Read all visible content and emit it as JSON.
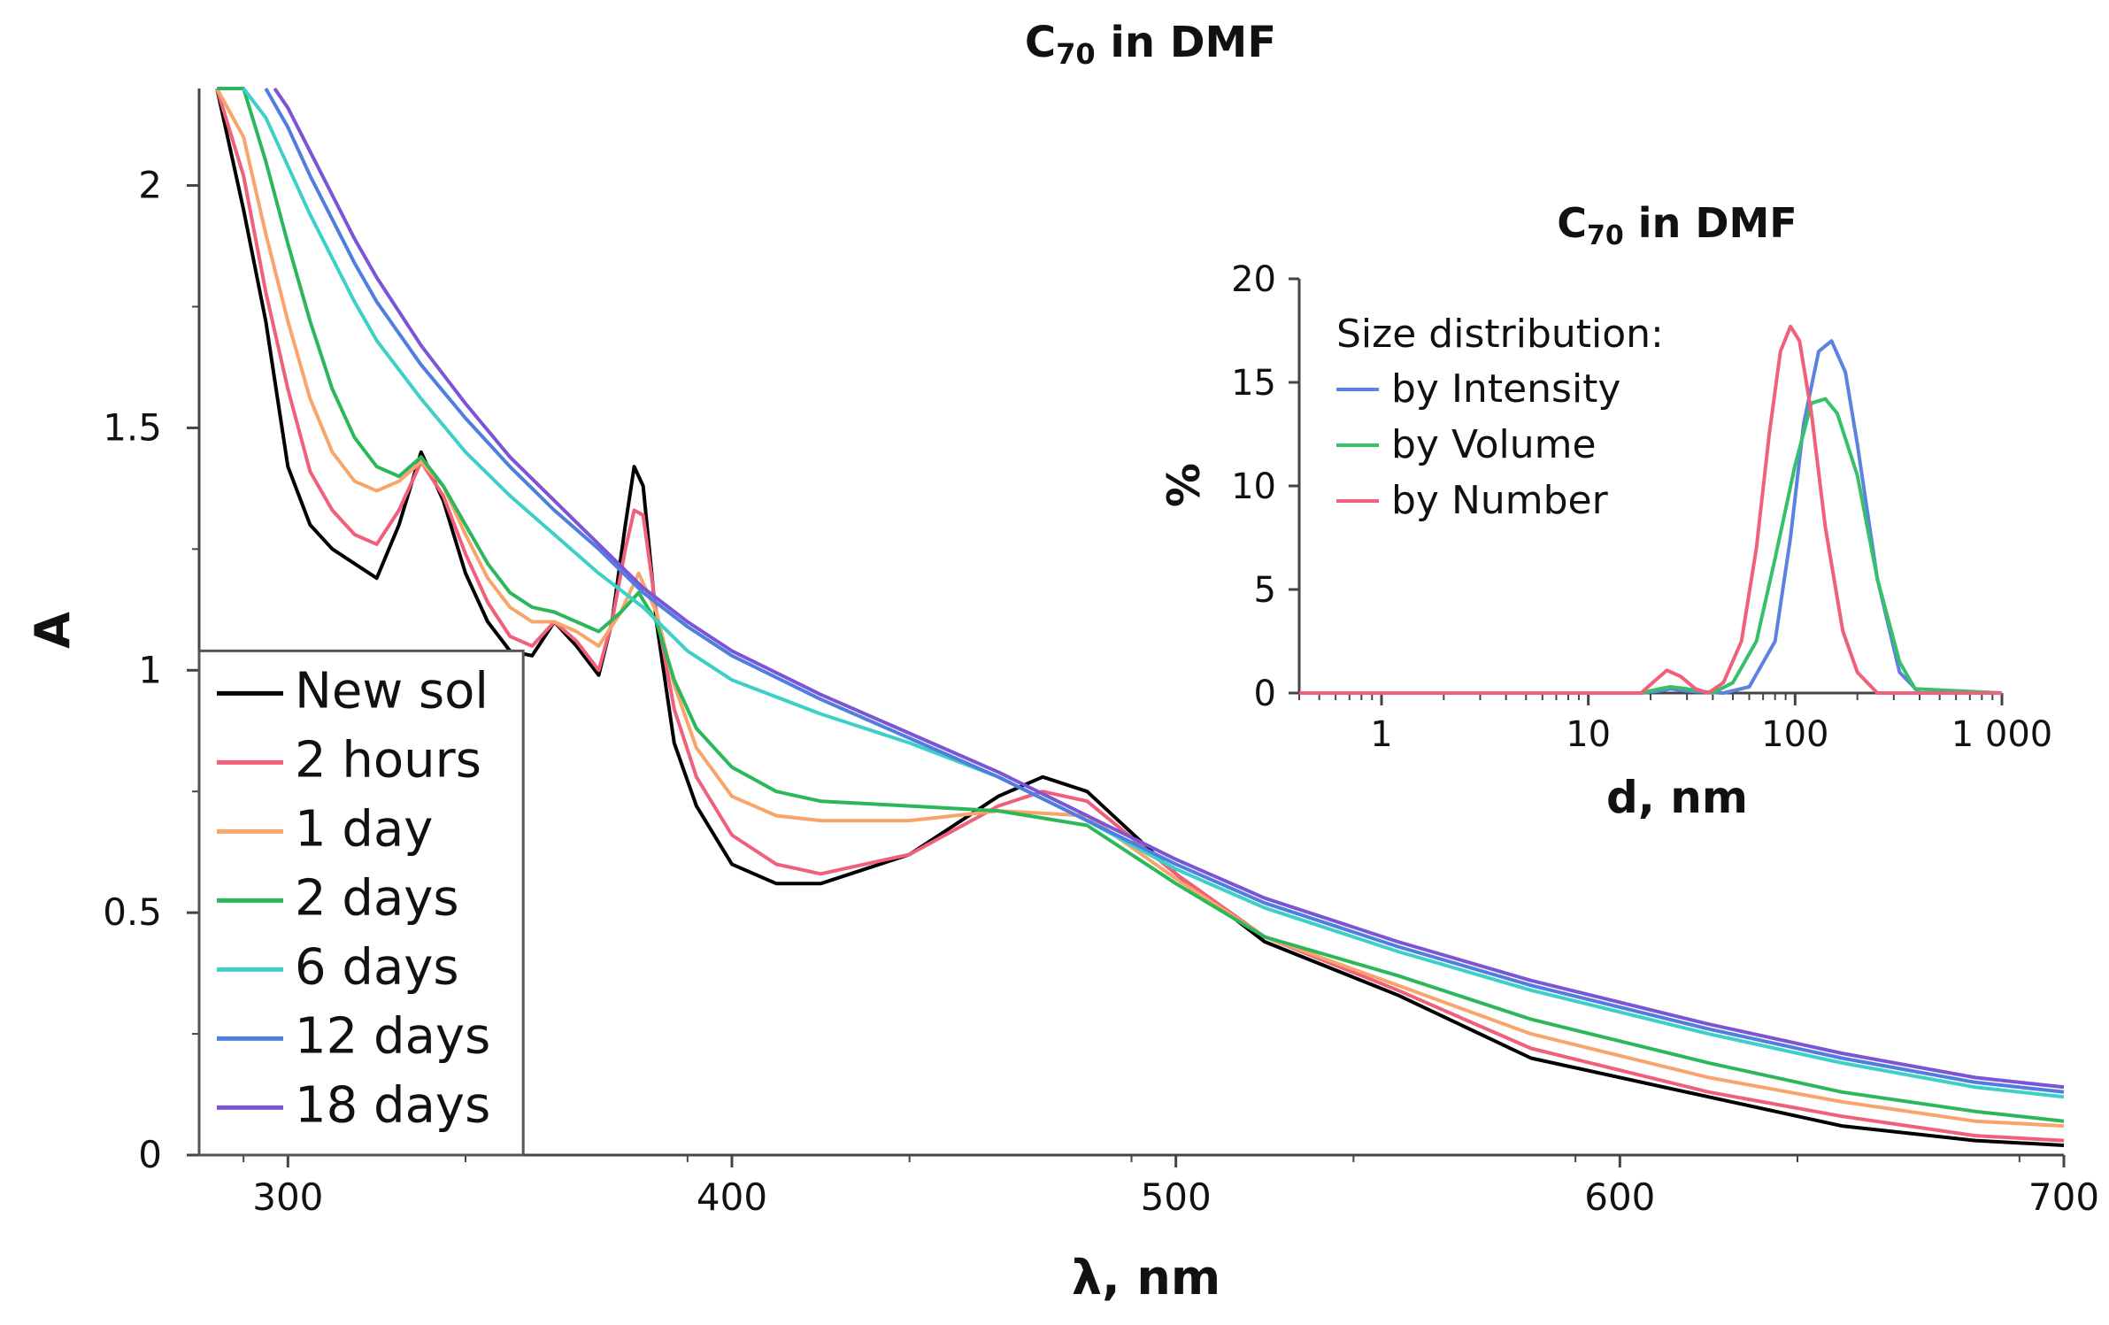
{
  "chart_data": [
    {
      "type": "line",
      "title": "C70 in DMF",
      "title_base": "C",
      "title_sub": "70",
      "title_rest": " in DMF",
      "xlabel": "λ, nm",
      "ylabel": "A",
      "xlim": [
        280,
        700
      ],
      "ylim": [
        0,
        2.2
      ],
      "x_ticks": [
        300,
        400,
        500,
        600,
        700
      ],
      "y_ticks": [
        0,
        0.5,
        1,
        1.5,
        2
      ],
      "y_tick_labels": [
        "0",
        "0.5",
        "1",
        "1.5",
        "2"
      ],
      "legend_position": "bottom-left",
      "grid": false,
      "series": [
        {
          "name": "New sol",
          "color": "#000000",
          "x": [
            284,
            290,
            295,
            300,
            305,
            310,
            315,
            320,
            325,
            330,
            335,
            340,
            345,
            350,
            355,
            360,
            365,
            370,
            373,
            376,
            378,
            380,
            383,
            387,
            392,
            400,
            410,
            420,
            440,
            460,
            470,
            480,
            500,
            520,
            550,
            580,
            620,
            650,
            680,
            700
          ],
          "y": [
            2.2,
            1.95,
            1.72,
            1.42,
            1.3,
            1.25,
            1.22,
            1.19,
            1.3,
            1.45,
            1.35,
            1.2,
            1.1,
            1.04,
            1.03,
            1.1,
            1.05,
            0.99,
            1.1,
            1.3,
            1.42,
            1.38,
            1.1,
            0.85,
            0.72,
            0.6,
            0.56,
            0.56,
            0.62,
            0.74,
            0.78,
            0.75,
            0.58,
            0.44,
            0.33,
            0.2,
            0.12,
            0.06,
            0.03,
            0.02
          ]
        },
        {
          "name": "2 hours",
          "color": "#f0607a",
          "x": [
            284,
            290,
            295,
            300,
            305,
            310,
            315,
            320,
            325,
            330,
            335,
            340,
            345,
            350,
            355,
            360,
            365,
            370,
            373,
            376,
            378,
            380,
            383,
            387,
            392,
            400,
            410,
            420,
            440,
            460,
            470,
            480,
            500,
            520,
            550,
            580,
            620,
            650,
            680,
            700
          ],
          "y": [
            2.2,
            2.02,
            1.78,
            1.58,
            1.41,
            1.33,
            1.28,
            1.26,
            1.33,
            1.43,
            1.36,
            1.24,
            1.14,
            1.07,
            1.05,
            1.1,
            1.06,
            1.0,
            1.1,
            1.25,
            1.33,
            1.32,
            1.12,
            0.92,
            0.78,
            0.66,
            0.6,
            0.58,
            0.62,
            0.72,
            0.75,
            0.73,
            0.58,
            0.45,
            0.34,
            0.22,
            0.13,
            0.08,
            0.04,
            0.03
          ]
        },
        {
          "name": "1 day",
          "color": "#f7a56a",
          "x": [
            284,
            290,
            295,
            300,
            305,
            310,
            315,
            320,
            325,
            330,
            335,
            340,
            345,
            350,
            355,
            360,
            365,
            370,
            375,
            379,
            383,
            387,
            392,
            400,
            410,
            420,
            440,
            460,
            480,
            500,
            520,
            550,
            580,
            620,
            650,
            680,
            700
          ],
          "y": [
            2.2,
            2.1,
            1.9,
            1.72,
            1.56,
            1.45,
            1.39,
            1.37,
            1.39,
            1.43,
            1.38,
            1.28,
            1.19,
            1.13,
            1.1,
            1.1,
            1.08,
            1.05,
            1.12,
            1.2,
            1.12,
            0.97,
            0.84,
            0.74,
            0.7,
            0.69,
            0.69,
            0.71,
            0.7,
            0.57,
            0.45,
            0.35,
            0.25,
            0.16,
            0.11,
            0.07,
            0.06
          ]
        },
        {
          "name": "2 days",
          "color": "#2cb85a",
          "x": [
            284,
            290,
            295,
            300,
            305,
            310,
            315,
            320,
            325,
            330,
            335,
            340,
            345,
            350,
            355,
            360,
            365,
            370,
            375,
            379,
            383,
            387,
            392,
            400,
            410,
            420,
            440,
            460,
            480,
            500,
            520,
            550,
            580,
            620,
            650,
            680,
            700
          ],
          "y": [
            2.2,
            2.2,
            2.05,
            1.88,
            1.72,
            1.58,
            1.48,
            1.42,
            1.4,
            1.44,
            1.38,
            1.3,
            1.22,
            1.16,
            1.13,
            1.12,
            1.1,
            1.08,
            1.12,
            1.16,
            1.1,
            0.98,
            0.88,
            0.8,
            0.75,
            0.73,
            0.72,
            0.71,
            0.68,
            0.56,
            0.45,
            0.37,
            0.28,
            0.19,
            0.13,
            0.09,
            0.07
          ]
        },
        {
          "name": "6 days",
          "color": "#3ed0c8",
          "x": [
            290,
            295,
            300,
            305,
            310,
            315,
            320,
            330,
            340,
            350,
            360,
            370,
            380,
            390,
            400,
            420,
            440,
            460,
            480,
            500,
            520,
            550,
            580,
            620,
            650,
            680,
            700
          ],
          "y": [
            2.2,
            2.14,
            2.04,
            1.94,
            1.85,
            1.76,
            1.68,
            1.56,
            1.45,
            1.36,
            1.28,
            1.2,
            1.13,
            1.04,
            0.98,
            0.91,
            0.85,
            0.78,
            0.69,
            0.59,
            0.51,
            0.42,
            0.34,
            0.25,
            0.19,
            0.14,
            0.12
          ]
        },
        {
          "name": "12 days",
          "color": "#4f7de0",
          "x": [
            295,
            300,
            305,
            310,
            315,
            320,
            330,
            340,
            350,
            360,
            370,
            380,
            390,
            400,
            420,
            440,
            460,
            480,
            500,
            520,
            550,
            580,
            620,
            650,
            680,
            700
          ],
          "y": [
            2.2,
            2.12,
            2.02,
            1.93,
            1.84,
            1.76,
            1.63,
            1.52,
            1.42,
            1.33,
            1.25,
            1.16,
            1.09,
            1.03,
            0.94,
            0.86,
            0.78,
            0.69,
            0.6,
            0.52,
            0.43,
            0.35,
            0.26,
            0.2,
            0.15,
            0.13
          ]
        },
        {
          "name": "18 days",
          "color": "#7b55d6",
          "x": [
            297,
            300,
            305,
            310,
            315,
            320,
            330,
            340,
            350,
            360,
            370,
            380,
            390,
            400,
            420,
            440,
            460,
            480,
            500,
            520,
            550,
            580,
            620,
            650,
            680,
            700
          ],
          "y": [
            2.2,
            2.16,
            2.07,
            1.98,
            1.89,
            1.81,
            1.67,
            1.55,
            1.44,
            1.35,
            1.26,
            1.17,
            1.1,
            1.04,
            0.95,
            0.87,
            0.79,
            0.7,
            0.61,
            0.53,
            0.44,
            0.36,
            0.27,
            0.21,
            0.16,
            0.14
          ]
        }
      ]
    },
    {
      "type": "line",
      "title": "C70 in DMF",
      "title_base": "C",
      "title_sub": "70",
      "title_rest": " in DMF",
      "xlabel": "d, nm",
      "ylabel": "%",
      "x_scale": "log",
      "xlim": [
        0.4,
        1000
      ],
      "ylim": [
        0,
        20
      ],
      "x_ticks": [
        1,
        10,
        100,
        1000
      ],
      "x_tick_labels": [
        "1",
        "10",
        "100",
        "1 000"
      ],
      "y_ticks": [
        0,
        5,
        10,
        15,
        20
      ],
      "legend_title": "Size distribution:",
      "legend_position": "top-left",
      "series": [
        {
          "name": "by Intensity",
          "color": "#5b82e0",
          "x": [
            0.4,
            18,
            22,
            25,
            30,
            45,
            60,
            80,
            95,
            110,
            130,
            150,
            175,
            200,
            250,
            320,
            400,
            1000
          ],
          "y": [
            0,
            0,
            0.1,
            0.2,
            0.1,
            0,
            0.3,
            2.5,
            7.5,
            13,
            16.5,
            17,
            15.5,
            12,
            5.5,
            1,
            0,
            0
          ]
        },
        {
          "name": "by Volume",
          "color": "#35c06a",
          "x": [
            0.4,
            18,
            22,
            25,
            30,
            40,
            50,
            65,
            80,
            100,
            120,
            140,
            160,
            200,
            250,
            320,
            380,
            1000
          ],
          "y": [
            0,
            0,
            0.2,
            0.3,
            0.2,
            0,
            0.5,
            2.5,
            6.5,
            11,
            14,
            14.2,
            13.5,
            10.5,
            5.5,
            1.5,
            0.2,
            0
          ]
        },
        {
          "name": "by Number",
          "color": "#f0607a",
          "x": [
            0.4,
            18,
            21,
            24,
            28,
            33,
            38,
            45,
            55,
            65,
            75,
            85,
            95,
            105,
            120,
            140,
            170,
            200,
            250,
            1000
          ],
          "y": [
            0,
            0,
            0.6,
            1.1,
            0.8,
            0.2,
            0,
            0.5,
            2.5,
            7,
            12.5,
            16.5,
            17.7,
            17,
            13.5,
            8,
            3,
            1,
            0,
            0
          ]
        }
      ]
    }
  ]
}
